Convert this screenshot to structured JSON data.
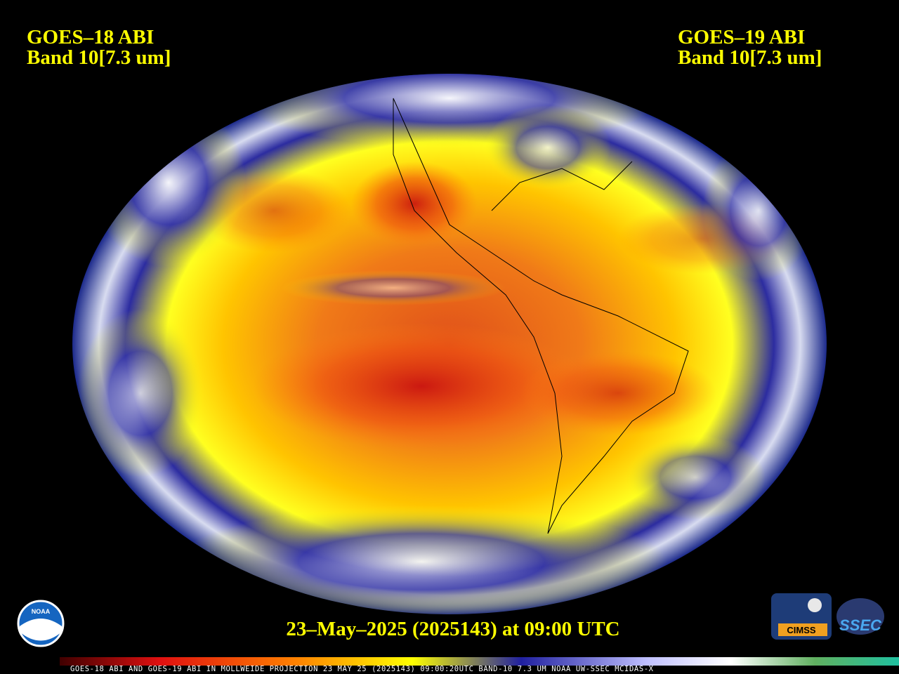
{
  "left_label": {
    "satellite": "GOES–18 ABI",
    "band": "Band 10[7.3 um]"
  },
  "right_label": {
    "satellite": "GOES–19 ABI",
    "band": "Band 10[7.3 um]"
  },
  "timestamp": "23–May–2025 (2025143) at 09:00 UTC",
  "footer_caption": "GOES-18 ABI AND GOES-19 ABI IN MOLLWEIDE PROJECTION 23 MAY 25 (2025143) 09:00:20UTC BAND-10 7.3 UM NOAA UW-SSEC MCIDAS-X",
  "logos": {
    "noaa": "NOAA",
    "cimss": "CIMSS",
    "ssec": "SSEC"
  }
}
